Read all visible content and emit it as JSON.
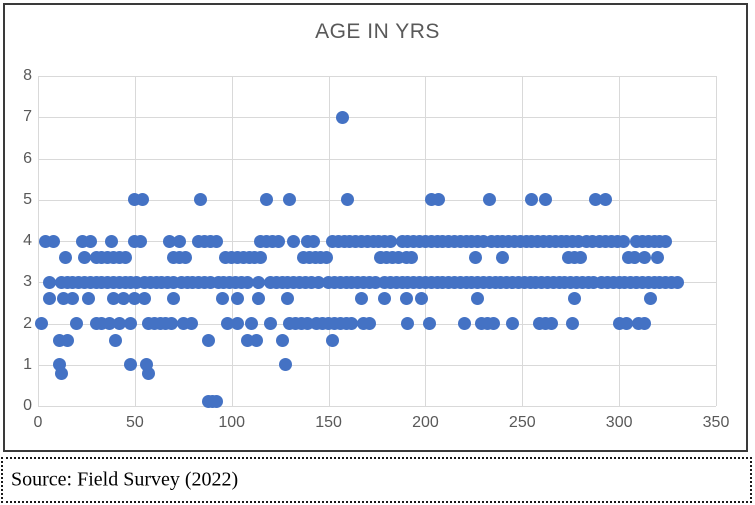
{
  "chart_data": {
    "type": "scatter",
    "title": "AGE IN YRS",
    "xlabel": "",
    "ylabel": "",
    "xlim": [
      0,
      350
    ],
    "ylim": [
      0,
      8
    ],
    "x_ticks": [
      0,
      50,
      100,
      150,
      200,
      250,
      300,
      350
    ],
    "y_ticks": [
      0,
      1,
      2,
      3,
      4,
      5,
      6,
      7,
      8
    ],
    "grid": true,
    "legend": false,
    "marker_color": "#4472c4",
    "grid_color": "#d9d9d9",
    "axis_text_color": "#595959",
    "points_by_age": {
      "7": [
        157
      ],
      "5": [
        50,
        54,
        84,
        118,
        130,
        160,
        203,
        207,
        233,
        255,
        262,
        288,
        293
      ],
      "4": [
        4,
        8,
        23,
        27,
        38,
        50,
        53,
        68,
        73,
        83,
        86,
        89,
        92,
        115,
        118,
        121,
        124,
        132,
        139,
        142,
        152,
        155,
        158,
        161,
        164,
        167,
        170,
        173,
        176,
        179,
        182,
        188,
        191,
        194,
        197,
        200,
        203,
        206,
        209,
        212,
        215,
        218,
        221,
        224,
        227,
        230,
        234,
        237,
        240,
        243,
        246,
        249,
        252,
        255,
        258,
        261,
        264,
        267,
        270,
        273,
        276,
        279,
        283,
        286,
        290,
        293,
        296,
        299,
        302,
        309,
        312,
        315,
        318,
        321,
        324
      ],
      "3.6": [
        14,
        24,
        30,
        33,
        36,
        39,
        42,
        45,
        70,
        73,
        76,
        97,
        100,
        103,
        106,
        109,
        112,
        115,
        137,
        140,
        143,
        146,
        149,
        177,
        180,
        183,
        186,
        190,
        193,
        226,
        240,
        274,
        277,
        280,
        305,
        308,
        313,
        320
      ],
      "3": [
        6,
        12,
        15,
        18,
        21,
        24,
        27,
        30,
        33,
        36,
        39,
        42,
        45,
        48,
        51,
        55,
        58,
        61,
        64,
        67,
        70,
        74,
        77,
        80,
        83,
        86,
        89,
        93,
        96,
        99,
        102,
        105,
        108,
        114,
        120,
        123,
        126,
        129,
        132,
        135,
        138,
        141,
        145,
        150,
        153,
        156,
        159,
        162,
        165,
        168,
        171,
        174,
        179,
        182,
        185,
        188,
        191,
        194,
        197,
        200,
        203,
        206,
        209,
        212,
        215,
        218,
        221,
        224,
        227,
        230,
        233,
        236,
        239,
        242,
        245,
        248,
        251,
        254,
        257,
        260,
        263,
        266,
        269,
        272,
        275,
        278,
        281,
        284,
        287,
        291,
        294,
        297,
        300,
        303,
        306,
        309,
        312,
        315,
        318,
        321,
        324,
        327,
        330
      ],
      "2.6": [
        6,
        13,
        18,
        26,
        39,
        44,
        50,
        55,
        70,
        95,
        103,
        114,
        129,
        167,
        179,
        190,
        198,
        227,
        277,
        316
      ],
      "2": [
        2,
        20,
        30,
        33,
        37,
        42,
        48,
        57,
        60,
        63,
        66,
        69,
        75,
        79,
        98,
        103,
        110,
        120,
        130,
        133,
        136,
        139,
        144,
        147,
        150,
        153,
        156,
        159,
        162,
        168,
        171,
        191,
        202,
        220,
        229,
        232,
        235,
        245,
        259,
        262,
        265,
        276,
        300,
        304,
        310,
        313
      ],
      "1.6": [
        11,
        15,
        40,
        88,
        108,
        113,
        126,
        152
      ],
      "1": [
        11,
        48,
        56,
        128
      ],
      "0.8": [
        12,
        57
      ],
      "0.1": [
        88,
        90,
        92
      ]
    }
  },
  "source": {
    "text": "Source: Field Survey (2022)"
  }
}
